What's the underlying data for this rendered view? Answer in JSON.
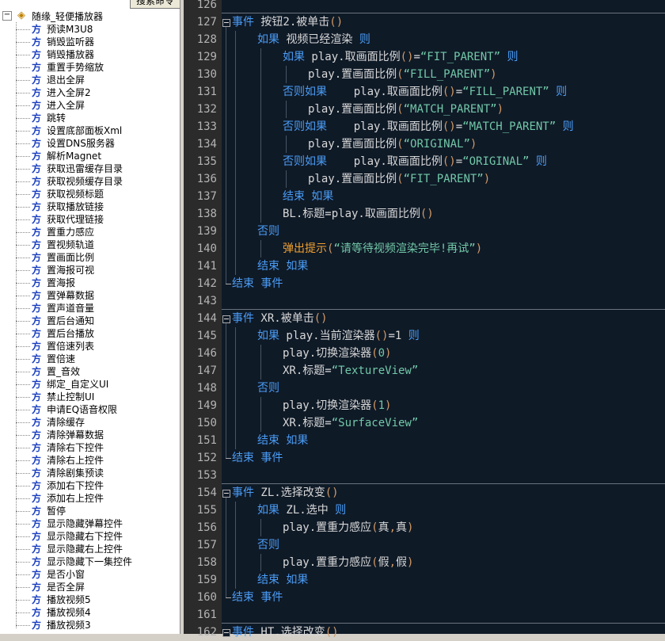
{
  "sidebar": {
    "search_button": "搜索命令",
    "root": "随缘_轻便播放器",
    "method_icon": "方",
    "items": [
      "预读M3U8",
      "销毁监听器",
      "销毁播放器",
      "重置手势缩放",
      "退出全屏",
      "进入全屏2",
      "进入全屏",
      "跳转",
      "设置底部面板Xml",
      "设置DNS服务器",
      "解析Magnet",
      "获取迅雷缓存目录",
      "获取视频缓存目录",
      "获取视频标题",
      "获取播放链接",
      "获取代理链接",
      "置重力感应",
      "置视频轨道",
      "置画面比例",
      "置海报可视",
      "置海报",
      "置弹幕数据",
      "置声道音量",
      "置后台通知",
      "置后台播放",
      "置倍速列表",
      "置倍速",
      "置_音效",
      "绑定_自定义UI",
      "禁止控制UI",
      "申请EQ语音权限",
      "清除缓存",
      "清除弹幕数据",
      "清除右下控件",
      "清除右上控件",
      "清除剧集预读",
      "添加右下控件",
      "添加右上控件",
      "暂停",
      "显示隐藏弹幕控件",
      "显示隐藏右下控件",
      "显示隐藏右上控件",
      "显示隐藏下一集控件",
      "是否小窗",
      "是否全屏",
      "播放视频5",
      "播放视频4",
      "播放视频3"
    ]
  },
  "editor": {
    "lines": [
      {
        "number": 126,
        "indent": 0,
        "tokens": []
      },
      {
        "number": 127,
        "indent": 0,
        "tokens": [
          {
            "text": "事件",
            "kind": "kw"
          },
          {
            "text": " 按钮2.被单击",
            "kind": "plain"
          },
          {
            "text": "()",
            "kind": "paren"
          }
        ]
      },
      {
        "number": 128,
        "indent": 1,
        "tokens": [
          {
            "text": "如果",
            "kind": "kw"
          },
          {
            "text": " 视频已经渲染 ",
            "kind": "plain"
          },
          {
            "text": "则",
            "kind": "kw"
          }
        ]
      },
      {
        "number": 129,
        "indent": 2,
        "tokens": [
          {
            "text": "如果",
            "kind": "kw"
          },
          {
            "text": " play.取画面比例",
            "kind": "plain"
          },
          {
            "text": "()",
            "kind": "paren"
          },
          {
            "text": "=",
            "kind": "plain"
          },
          {
            "text": "“FIT_PARENT”",
            "kind": "str"
          },
          {
            "text": " ",
            "kind": "plain"
          },
          {
            "text": "则",
            "kind": "kw"
          }
        ]
      },
      {
        "number": 130,
        "indent": 3,
        "tokens": [
          {
            "text": "play.置画面比例",
            "kind": "plain"
          },
          {
            "text": "(",
            "kind": "paren"
          },
          {
            "text": "“FILL_PARENT”",
            "kind": "str"
          },
          {
            "text": ")",
            "kind": "paren"
          }
        ]
      },
      {
        "number": 131,
        "indent": 2,
        "tokens": [
          {
            "text": "否则如果",
            "kind": "kw"
          },
          {
            "text": "    play.取画面比例",
            "kind": "plain"
          },
          {
            "text": "()",
            "kind": "paren"
          },
          {
            "text": "=",
            "kind": "plain"
          },
          {
            "text": "“FILL_PARENT”",
            "kind": "str"
          },
          {
            "text": " ",
            "kind": "plain"
          },
          {
            "text": "则",
            "kind": "kw"
          }
        ]
      },
      {
        "number": 132,
        "indent": 3,
        "tokens": [
          {
            "text": "play.置画面比例",
            "kind": "plain"
          },
          {
            "text": "(",
            "kind": "paren"
          },
          {
            "text": "“MATCH_PARENT”",
            "kind": "str"
          },
          {
            "text": ")",
            "kind": "paren"
          }
        ]
      },
      {
        "number": 133,
        "indent": 2,
        "tokens": [
          {
            "text": "否则如果",
            "kind": "kw"
          },
          {
            "text": "    play.取画面比例",
            "kind": "plain"
          },
          {
            "text": "()",
            "kind": "paren"
          },
          {
            "text": "=",
            "kind": "plain"
          },
          {
            "text": "“MATCH_PARENT”",
            "kind": "str"
          },
          {
            "text": " ",
            "kind": "plain"
          },
          {
            "text": "则",
            "kind": "kw"
          }
        ]
      },
      {
        "number": 134,
        "indent": 3,
        "tokens": [
          {
            "text": "play.置画面比例",
            "kind": "plain"
          },
          {
            "text": "(",
            "kind": "paren"
          },
          {
            "text": "“ORIGINAL”",
            "kind": "str"
          },
          {
            "text": ")",
            "kind": "paren"
          }
        ]
      },
      {
        "number": 135,
        "indent": 2,
        "tokens": [
          {
            "text": "否则如果",
            "kind": "kw"
          },
          {
            "text": "    play.取画面比例",
            "kind": "plain"
          },
          {
            "text": "()",
            "kind": "paren"
          },
          {
            "text": "=",
            "kind": "plain"
          },
          {
            "text": "“ORIGINAL”",
            "kind": "str"
          },
          {
            "text": " ",
            "kind": "plain"
          },
          {
            "text": "则",
            "kind": "kw"
          }
        ]
      },
      {
        "number": 136,
        "indent": 3,
        "tokens": [
          {
            "text": "play.置画面比例",
            "kind": "plain"
          },
          {
            "text": "(",
            "kind": "paren"
          },
          {
            "text": "“FIT_PARENT”",
            "kind": "str"
          },
          {
            "text": ")",
            "kind": "paren"
          }
        ]
      },
      {
        "number": 137,
        "indent": 2,
        "tokens": [
          {
            "text": "结束 如果",
            "kind": "kw"
          }
        ]
      },
      {
        "number": 138,
        "indent": 2,
        "tokens": [
          {
            "text": "BL.标题=play.取画面比例",
            "kind": "plain"
          },
          {
            "text": "()",
            "kind": "paren"
          }
        ]
      },
      {
        "number": 139,
        "indent": 1,
        "tokens": [
          {
            "text": "否则",
            "kind": "kw"
          }
        ]
      },
      {
        "number": 140,
        "indent": 2,
        "tokens": [
          {
            "text": "弹出提示",
            "kind": "fn"
          },
          {
            "text": "(",
            "kind": "paren"
          },
          {
            "text": "“请等待视频渲染完毕!再试”",
            "kind": "str"
          },
          {
            "text": ")",
            "kind": "paren"
          }
        ]
      },
      {
        "number": 141,
        "indent": 1,
        "tokens": [
          {
            "text": "结束 如果",
            "kind": "kw"
          }
        ]
      },
      {
        "number": 142,
        "indent": 0,
        "tokens": [
          {
            "text": "结束 事件",
            "kind": "kw"
          }
        ]
      },
      {
        "number": 143,
        "indent": 0,
        "tokens": []
      },
      {
        "number": 144,
        "indent": 0,
        "tokens": [
          {
            "text": "事件",
            "kind": "kw"
          },
          {
            "text": " XR.被单击",
            "kind": "plain"
          },
          {
            "text": "()",
            "kind": "paren"
          }
        ]
      },
      {
        "number": 145,
        "indent": 1,
        "tokens": [
          {
            "text": "如果",
            "kind": "kw"
          },
          {
            "text": " play.当前渲染器",
            "kind": "plain"
          },
          {
            "text": "()",
            "kind": "paren"
          },
          {
            "text": "=1 ",
            "kind": "plain"
          },
          {
            "text": "则",
            "kind": "kw"
          }
        ]
      },
      {
        "number": 146,
        "indent": 2,
        "tokens": [
          {
            "text": "play.切换渲染器",
            "kind": "plain"
          },
          {
            "text": "(",
            "kind": "paren"
          },
          {
            "text": "0",
            "kind": "str"
          },
          {
            "text": ")",
            "kind": "paren"
          }
        ]
      },
      {
        "number": 147,
        "indent": 2,
        "tokens": [
          {
            "text": "XR.标题=",
            "kind": "plain"
          },
          {
            "text": "“TextureView”",
            "kind": "str"
          }
        ]
      },
      {
        "number": 148,
        "indent": 1,
        "tokens": [
          {
            "text": "否则",
            "kind": "kw"
          }
        ]
      },
      {
        "number": 149,
        "indent": 2,
        "tokens": [
          {
            "text": "play.切换渲染器",
            "kind": "plain"
          },
          {
            "text": "(",
            "kind": "paren"
          },
          {
            "text": "1",
            "kind": "str"
          },
          {
            "text": ")",
            "kind": "paren"
          }
        ]
      },
      {
        "number": 150,
        "indent": 2,
        "tokens": [
          {
            "text": "XR.标题=",
            "kind": "plain"
          },
          {
            "text": "“SurfaceView”",
            "kind": "str"
          }
        ]
      },
      {
        "number": 151,
        "indent": 1,
        "tokens": [
          {
            "text": "结束 如果",
            "kind": "kw"
          }
        ]
      },
      {
        "number": 152,
        "indent": 0,
        "tokens": [
          {
            "text": "结束 事件",
            "kind": "kw"
          }
        ]
      },
      {
        "number": 153,
        "indent": 0,
        "tokens": []
      },
      {
        "number": 154,
        "indent": 0,
        "tokens": [
          {
            "text": "事件",
            "kind": "kw"
          },
          {
            "text": " ZL.选择改变",
            "kind": "plain"
          },
          {
            "text": "()",
            "kind": "paren"
          }
        ]
      },
      {
        "number": 155,
        "indent": 1,
        "tokens": [
          {
            "text": "如果",
            "kind": "kw"
          },
          {
            "text": " ZL.选中 ",
            "kind": "plain"
          },
          {
            "text": "则",
            "kind": "kw"
          }
        ]
      },
      {
        "number": 156,
        "indent": 2,
        "tokens": [
          {
            "text": "play.置重力感应",
            "kind": "plain"
          },
          {
            "text": "(",
            "kind": "paren"
          },
          {
            "text": "真",
            "kind": "plain"
          },
          {
            "text": ",",
            "kind": "paren"
          },
          {
            "text": "真",
            "kind": "plain"
          },
          {
            "text": ")",
            "kind": "paren"
          }
        ]
      },
      {
        "number": 157,
        "indent": 1,
        "tokens": [
          {
            "text": "否则",
            "kind": "kw"
          }
        ]
      },
      {
        "number": 158,
        "indent": 2,
        "tokens": [
          {
            "text": "play.置重力感应",
            "kind": "plain"
          },
          {
            "text": "(",
            "kind": "paren"
          },
          {
            "text": "假",
            "kind": "plain"
          },
          {
            "text": ",",
            "kind": "paren"
          },
          {
            "text": "假",
            "kind": "plain"
          },
          {
            "text": ")",
            "kind": "paren"
          }
        ]
      },
      {
        "number": 159,
        "indent": 1,
        "tokens": [
          {
            "text": "结束 如果",
            "kind": "kw"
          }
        ]
      },
      {
        "number": 160,
        "indent": 0,
        "tokens": [
          {
            "text": "结束 事件",
            "kind": "kw"
          }
        ]
      },
      {
        "number": 161,
        "indent": 0,
        "tokens": []
      },
      {
        "number": 162,
        "indent": 0,
        "tokens": [
          {
            "text": "事件",
            "kind": "kw"
          },
          {
            "text": " HT.选择改变",
            "kind": "plain"
          },
          {
            "text": "()",
            "kind": "paren"
          }
        ]
      }
    ]
  }
}
